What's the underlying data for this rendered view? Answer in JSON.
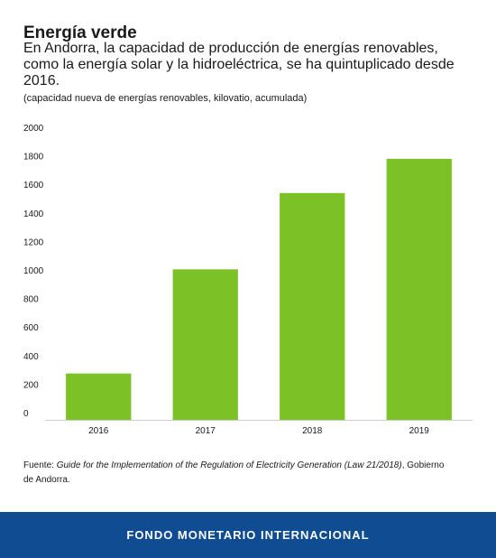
{
  "header": {
    "title": "Energía verde",
    "subtitle": "En Andorra, la capacidad de producción de energías renovables, como la energía solar y la hidroeléctrica, se ha quintuplicado desde 2016.",
    "unit_note": "(capacidad nueva de energías renovables, kilovatio, acumulada)"
  },
  "chart_data": {
    "type": "bar",
    "categories": [
      "2016",
      "2017",
      "2018",
      "2019"
    ],
    "values": [
      325,
      1055,
      1590,
      1830
    ],
    "title": "",
    "xlabel": "",
    "ylabel": "",
    "ylim": [
      0,
      2000
    ],
    "yticks": [
      0,
      200,
      400,
      600,
      800,
      1000,
      1200,
      1400,
      1600,
      1800,
      2000
    ],
    "grid": false,
    "bar_color": "#7cc126"
  },
  "source": {
    "prefix": "Fuente: ",
    "document": "Guide for the Implementation of the Regulation of Electricity Generation (Law 21/2018)",
    "suffix": ", Gobierno de Andorra."
  },
  "footer": {
    "label": "FONDO MONETARIO INTERNACIONAL",
    "color": "#0f4c92"
  }
}
